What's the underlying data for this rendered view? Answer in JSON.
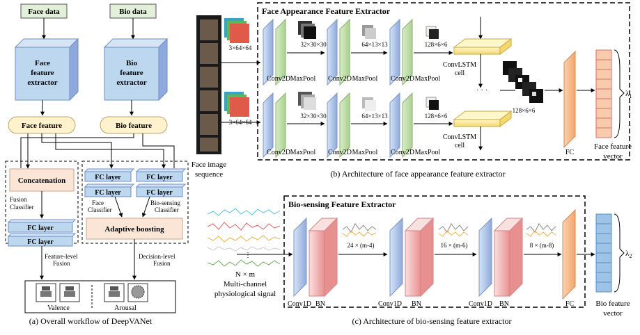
{
  "panel_a": {
    "face_data": "Face data",
    "bio_data": "Bio data",
    "face_extractor_l1": "Face",
    "face_extractor_l2": "feature",
    "face_extractor_l3": "extractor",
    "bio_extractor_l1": "Bio",
    "bio_extractor_l2": "feature",
    "bio_extractor_l3": "extractor",
    "face_feature": "Face feature",
    "bio_feature": "Bio feature",
    "concatenation": "Concatenation",
    "fusion_classifier_l1": "Fusion",
    "fusion_classifier_l2": "Classifier",
    "fc_layer": "FC layer",
    "face_classifier_l1": "Face",
    "face_classifier_l2": "Classifier",
    "bio_classifier_l1": "Bio-sensing",
    "bio_classifier_l2": "Classifier",
    "adaptive_boosting": "Adaptive boosting",
    "feature_fusion_l1": "Feature-level",
    "feature_fusion_l2": "Fusion",
    "decision_fusion_l1": "Decision-level",
    "decision_fusion_l2": "Fusion",
    "valence": "Valence",
    "arousal": "Arousal",
    "caption": "(a) Overall workflow of DeepVANet"
  },
  "panel_b": {
    "title": "Face Appearance Feature Extractor",
    "input_dim": "3×64×64",
    "dim1": "32×30×30",
    "dim2": "64×13×13",
    "dim3": "128×6×6",
    "dim_out": "128×6×6",
    "conv2d": "Conv2D",
    "maxpool": "MaxPool",
    "convlstm_l1": "ConvLSTM",
    "convlstm_l2": "cell",
    "dots": "· · ·",
    "fc": "FC",
    "lambda": "λ",
    "lambda_sub": "1",
    "vector_l1": "Face feature",
    "vector_l2": "vector",
    "input_l1": "Face image",
    "input_l2": "sequence",
    "caption": "(b) Architecture of face appearance feature extractor"
  },
  "panel_c": {
    "title": "Bio-sensing Feature Extractor",
    "dim1": "24 × (m-4)",
    "dim2": "16 × (m-6)",
    "dim3": "8 × (m-8)",
    "conv1d": "Conv1D",
    "bn": "BN",
    "fc": "FC",
    "input_l1": "N × m",
    "input_l2": "Multi-channel",
    "input_l3": "physiological signal",
    "lambda": "λ",
    "lambda_sub": "2",
    "vector_l1": "Bio feature",
    "vector_l2": "vector",
    "caption": "(c) Architecture of bio-sensing feature extractor"
  },
  "colors": {
    "input_box": "#e2efd9",
    "blue_block": "#bdd7ee",
    "fusion_box": "#fbe5d6",
    "feature_ellipse": "#fff2cc",
    "conv_blue": "#8fa9dc",
    "pool_green": "#a9d18e",
    "bn_red": "#f4b6b6",
    "fc_orange": "#f4b183",
    "face_vector": "#f8cbad",
    "bio_vector": "#9dc3e6"
  }
}
